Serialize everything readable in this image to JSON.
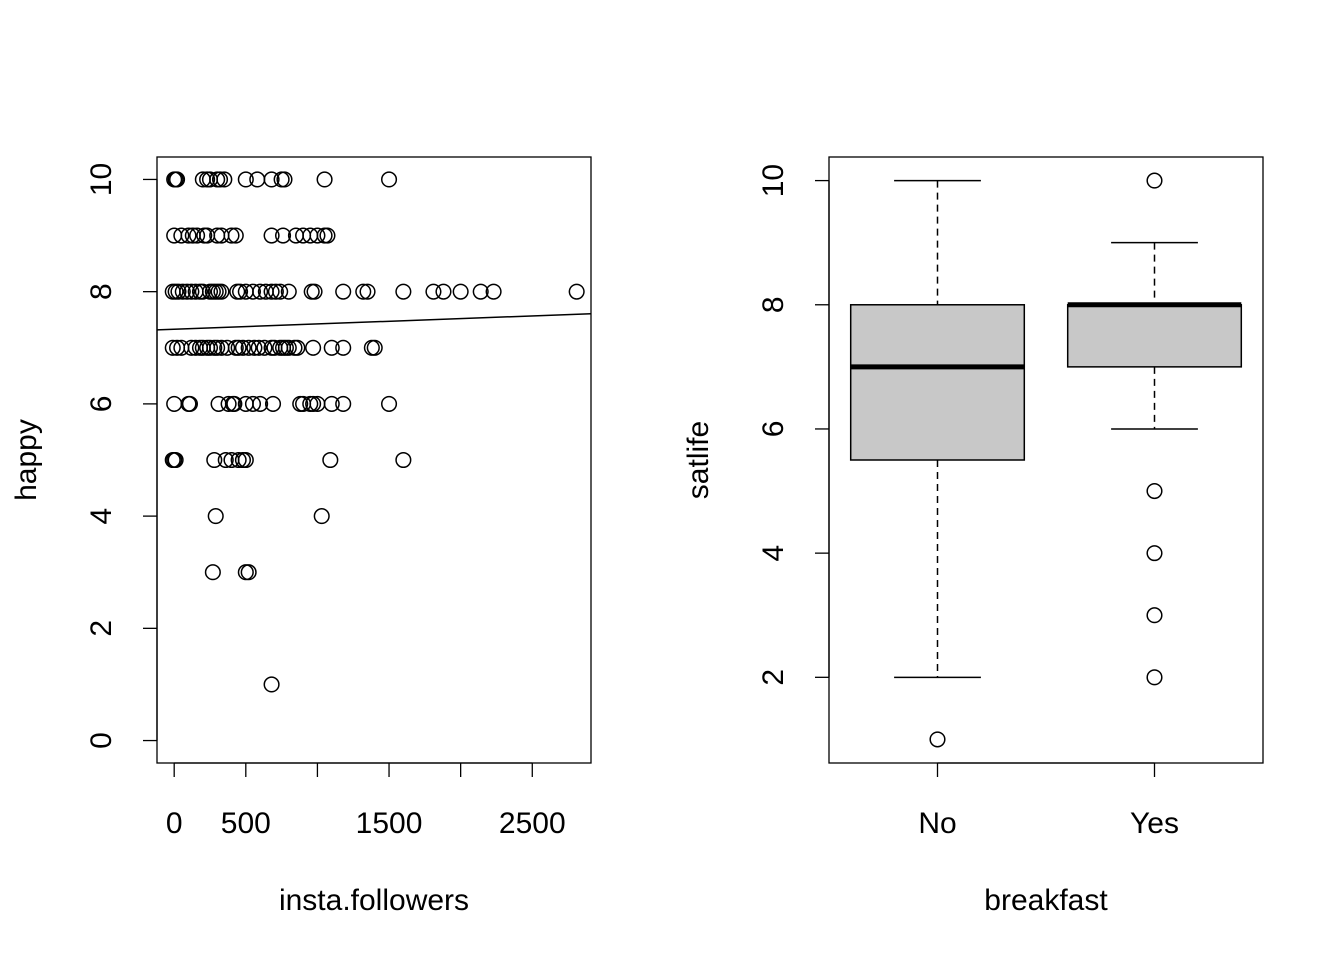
{
  "colors": {
    "background": "#ffffff",
    "ink": "#000000",
    "box_fill": "#c8c8c8"
  },
  "chart_data": [
    {
      "type": "scatter",
      "title": "",
      "xlabel": "insta.followers",
      "ylabel": "happy",
      "xlim": [
        -120,
        2910
      ],
      "ylim": [
        -0.4,
        10.4
      ],
      "x_ticks": [
        0,
        500,
        1000,
        1500,
        2000,
        2500
      ],
      "x_tick_labels": [
        "0",
        "500",
        "",
        "1500",
        "",
        "2500"
      ],
      "y_ticks": [
        0,
        2,
        4,
        6,
        8,
        10
      ],
      "y_tick_labels": [
        "0",
        "2",
        "4",
        "6",
        "8",
        "10"
      ],
      "grid": false,
      "marker": "open-circle",
      "regression_line": {
        "intercept": 7.33,
        "slope": 9.5e-05
      },
      "points": [
        [
          0,
          10
        ],
        [
          10,
          10
        ],
        [
          20,
          10
        ],
        [
          200,
          10
        ],
        [
          230,
          10
        ],
        [
          250,
          10
        ],
        [
          300,
          10
        ],
        [
          320,
          10
        ],
        [
          350,
          10
        ],
        [
          500,
          10
        ],
        [
          580,
          10
        ],
        [
          680,
          10
        ],
        [
          750,
          10
        ],
        [
          770,
          10
        ],
        [
          1050,
          10
        ],
        [
          1500,
          10
        ],
        [
          0,
          9
        ],
        [
          50,
          9
        ],
        [
          100,
          9
        ],
        [
          130,
          9
        ],
        [
          160,
          9
        ],
        [
          210,
          9
        ],
        [
          230,
          9
        ],
        [
          300,
          9
        ],
        [
          330,
          9
        ],
        [
          400,
          9
        ],
        [
          430,
          9
        ],
        [
          680,
          9
        ],
        [
          760,
          9
        ],
        [
          850,
          9
        ],
        [
          900,
          9
        ],
        [
          950,
          9
        ],
        [
          1000,
          9
        ],
        [
          1050,
          9
        ],
        [
          1070,
          9
        ],
        [
          -10,
          8
        ],
        [
          10,
          8
        ],
        [
          30,
          8
        ],
        [
          60,
          8
        ],
        [
          90,
          8
        ],
        [
          120,
          8
        ],
        [
          150,
          8
        ],
        [
          180,
          8
        ],
        [
          200,
          8
        ],
        [
          250,
          8
        ],
        [
          270,
          8
        ],
        [
          290,
          8
        ],
        [
          310,
          8
        ],
        [
          330,
          8
        ],
        [
          440,
          8
        ],
        [
          460,
          8
        ],
        [
          500,
          8
        ],
        [
          550,
          8
        ],
        [
          600,
          8
        ],
        [
          640,
          8
        ],
        [
          680,
          8
        ],
        [
          710,
          8
        ],
        [
          740,
          8
        ],
        [
          800,
          8
        ],
        [
          960,
          8
        ],
        [
          980,
          8
        ],
        [
          1180,
          8
        ],
        [
          1320,
          8
        ],
        [
          1350,
          8
        ],
        [
          1600,
          8
        ],
        [
          1810,
          8
        ],
        [
          1880,
          8
        ],
        [
          2000,
          8
        ],
        [
          2140,
          8
        ],
        [
          2230,
          8
        ],
        [
          2810,
          8
        ],
        [
          -10,
          7
        ],
        [
          20,
          7
        ],
        [
          50,
          7
        ],
        [
          120,
          7
        ],
        [
          150,
          7
        ],
        [
          180,
          7
        ],
        [
          200,
          7
        ],
        [
          230,
          7
        ],
        [
          250,
          7
        ],
        [
          280,
          7
        ],
        [
          300,
          7
        ],
        [
          330,
          7
        ],
        [
          370,
          7
        ],
        [
          430,
          7
        ],
        [
          450,
          7
        ],
        [
          480,
          7
        ],
        [
          520,
          7
        ],
        [
          560,
          7
        ],
        [
          590,
          7
        ],
        [
          630,
          7
        ],
        [
          680,
          7
        ],
        [
          700,
          7
        ],
        [
          740,
          7
        ],
        [
          760,
          7
        ],
        [
          780,
          7
        ],
        [
          800,
          7
        ],
        [
          840,
          7
        ],
        [
          860,
          7
        ],
        [
          970,
          7
        ],
        [
          1100,
          7
        ],
        [
          1180,
          7
        ],
        [
          1380,
          7
        ],
        [
          1400,
          7
        ],
        [
          0,
          6
        ],
        [
          100,
          6
        ],
        [
          110,
          6
        ],
        [
          310,
          6
        ],
        [
          380,
          6
        ],
        [
          410,
          6
        ],
        [
          420,
          6
        ],
        [
          500,
          6
        ],
        [
          550,
          6
        ],
        [
          600,
          6
        ],
        [
          690,
          6
        ],
        [
          880,
          6
        ],
        [
          900,
          6
        ],
        [
          950,
          6
        ],
        [
          970,
          6
        ],
        [
          1000,
          6
        ],
        [
          1100,
          6
        ],
        [
          1180,
          6
        ],
        [
          1500,
          6
        ],
        [
          -10,
          5
        ],
        [
          0,
          5
        ],
        [
          10,
          5
        ],
        [
          280,
          5
        ],
        [
          360,
          5
        ],
        [
          400,
          5
        ],
        [
          450,
          5
        ],
        [
          480,
          5
        ],
        [
          500,
          5
        ],
        [
          1090,
          5
        ],
        [
          1600,
          5
        ],
        [
          290,
          4
        ],
        [
          1030,
          4
        ],
        [
          270,
          3
        ],
        [
          500,
          3
        ],
        [
          520,
          3
        ],
        [
          680,
          1
        ]
      ]
    },
    {
      "type": "box",
      "title": "",
      "xlabel": "breakfast",
      "ylabel": "satlife",
      "ylim": [
        0.62,
        10.38
      ],
      "y_ticks": [
        2,
        4,
        6,
        8,
        10
      ],
      "y_tick_labels": [
        "2",
        "4",
        "6",
        "8",
        "10"
      ],
      "categories": [
        "No",
        "Yes"
      ],
      "grid": false,
      "boxes": [
        {
          "name": "No",
          "whisker_low": 2,
          "q1": 5.5,
          "median": 7,
          "q3": 8,
          "whisker_high": 10,
          "outliers": [
            1
          ]
        },
        {
          "name": "Yes",
          "whisker_low": 6,
          "q1": 7,
          "median": 8,
          "q3": 8,
          "whisker_high": 9,
          "outliers": [
            10,
            5,
            4,
            3,
            2
          ]
        }
      ]
    }
  ]
}
